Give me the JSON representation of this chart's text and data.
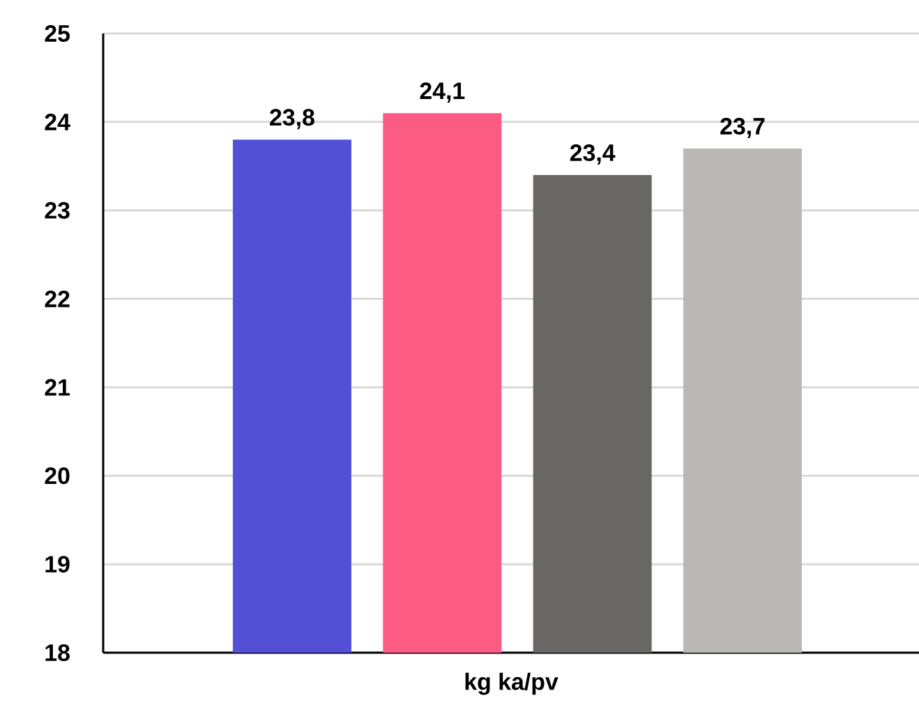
{
  "chart_data": {
    "type": "bar",
    "xlabel": "kg ka/pv",
    "categories": [
      null,
      null,
      null,
      null
    ],
    "values": [
      23.8,
      24.1,
      23.4,
      23.7
    ],
    "colors": [
      "#5350d6",
      "#fc5c84",
      "#696763",
      "#b9b8b6"
    ],
    "value_labels": [
      "23,8",
      "24,1",
      "23,4",
      "23,7"
    ],
    "ylim": [
      18,
      25
    ],
    "yticks": [
      18,
      19,
      20,
      21,
      22,
      23,
      24,
      25
    ],
    "grid": "y"
  }
}
